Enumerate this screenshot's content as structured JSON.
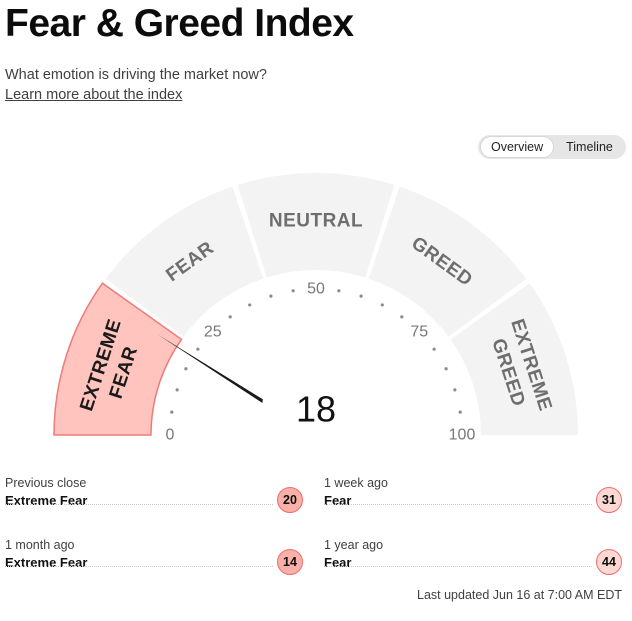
{
  "header": {
    "title": "Fear & Greed Index",
    "subtitle": "What emotion is driving the market now?",
    "learn_link": "Learn more about the index"
  },
  "view_toggle": {
    "overview": "Overview",
    "timeline": "Timeline",
    "active": "overview"
  },
  "gauge": {
    "value": 18,
    "value_label": "18",
    "current_zone": "extreme-fear",
    "zones": [
      {
        "key": "extreme-fear",
        "label_lines": [
          "EXTREME",
          "FEAR"
        ]
      },
      {
        "key": "fear",
        "label_lines": [
          "FEAR"
        ]
      },
      {
        "key": "neutral",
        "label_lines": [
          "NEUTRAL"
        ]
      },
      {
        "key": "greed",
        "label_lines": [
          "GREED"
        ]
      },
      {
        "key": "extreme-greed",
        "label_lines": [
          "EXTREME",
          "GREED"
        ]
      }
    ],
    "scale_labels": [
      {
        "value": 0,
        "text": "0"
      },
      {
        "value": 25,
        "text": "25"
      },
      {
        "value": 50,
        "text": "50"
      },
      {
        "value": 75,
        "text": "75"
      },
      {
        "value": 100,
        "text": "100"
      }
    ],
    "colors": {
      "active_fill": "#ffc4bd",
      "active_stroke": "#f07a7a",
      "zone_fill": "#f3f3f3",
      "zone_text": "#6e6e6e",
      "active_text": "#1a1a1a",
      "needle": "#1a1a1a"
    }
  },
  "history": {
    "previous_close": {
      "label": "Previous close",
      "rating": "Extreme Fear",
      "value": "20"
    },
    "week_ago": {
      "label": "1 week ago",
      "rating": "Fear",
      "value": "31"
    },
    "month_ago": {
      "label": "1 month ago",
      "rating": "Extreme Fear",
      "value": "14"
    },
    "year_ago": {
      "label": "1 year ago",
      "rating": "Fear",
      "value": "44"
    }
  },
  "last_updated": "Last updated Jun 16 at 7:00 AM EDT"
}
